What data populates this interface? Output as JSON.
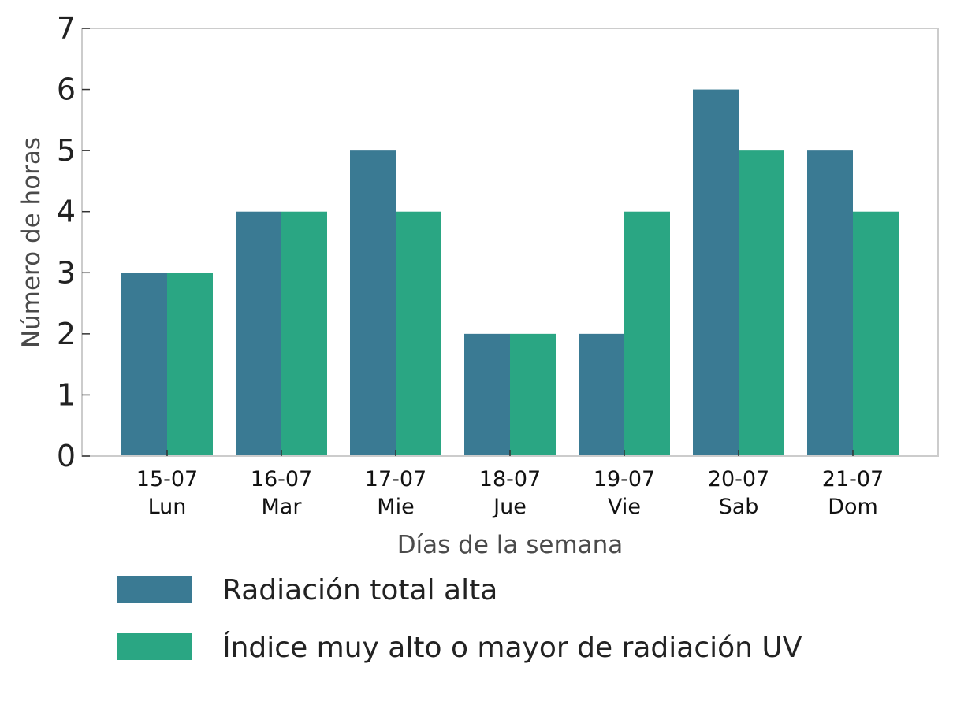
{
  "chart_data": {
    "type": "bar",
    "categories": [
      [
        "15-07",
        "Lun"
      ],
      [
        "16-07",
        "Mar"
      ],
      [
        "17-07",
        "Mie"
      ],
      [
        "18-07",
        "Jue"
      ],
      [
        "19-07",
        "Vie"
      ],
      [
        "20-07",
        "Sab"
      ],
      [
        "21-07",
        "Dom"
      ]
    ],
    "series": [
      {
        "name": "Radiación total alta",
        "color": "#3a7a93",
        "values": [
          3,
          4,
          5,
          2,
          2,
          6,
          5
        ]
      },
      {
        "name": "Índice muy alto o mayor de radiación UV",
        "color": "#2aa683",
        "values": [
          3,
          4,
          4,
          2,
          4,
          5,
          4
        ]
      }
    ],
    "title": "",
    "xlabel": "Días de la semana",
    "ylabel": "Número de horas",
    "ylim": [
      0,
      7
    ],
    "yticks": [
      0,
      1,
      2,
      3,
      4,
      5,
      6,
      7
    ],
    "grid": false,
    "legend_position": "bottom"
  }
}
